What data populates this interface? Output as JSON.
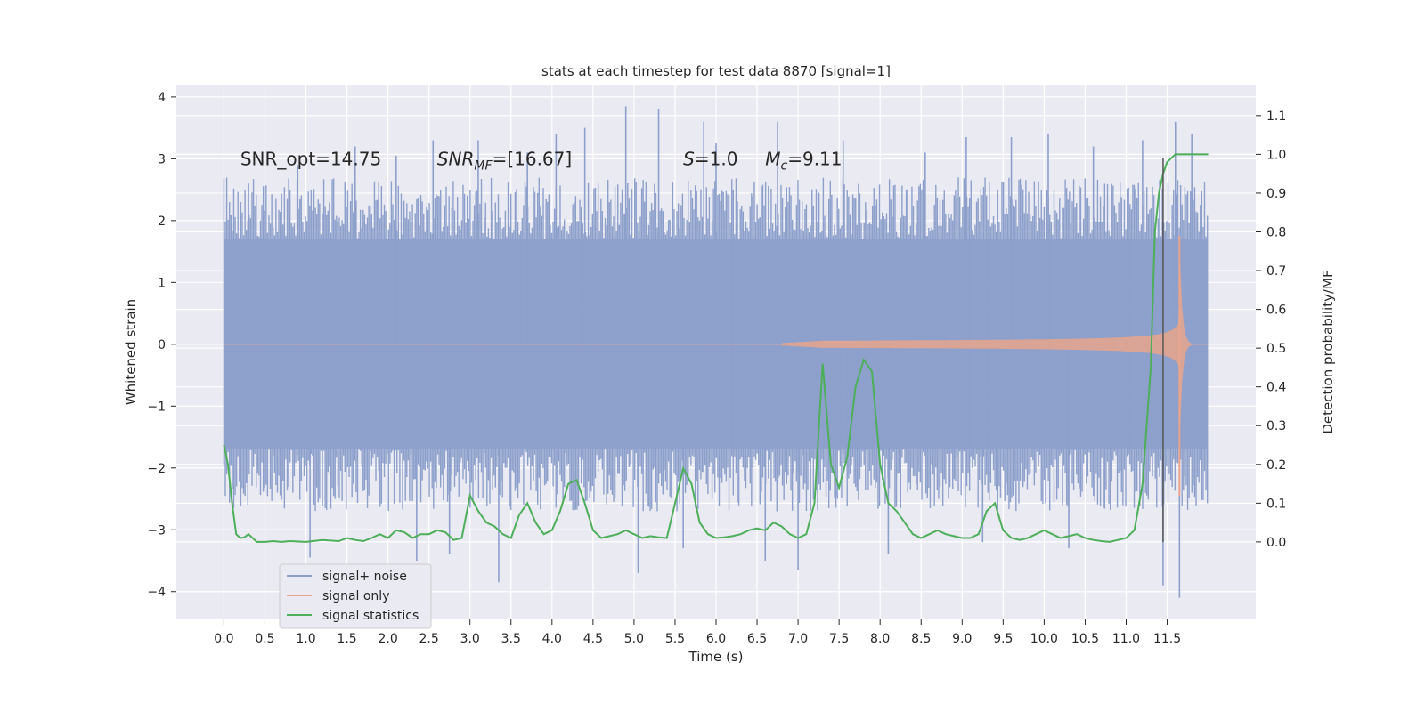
{
  "chart_data": {
    "type": "line",
    "title": "stats at each timestep for test data 8870 [signal=1]",
    "xlabel": "Time (s)",
    "ylabel_left": "Whitened strain",
    "ylabel_right": "Detection probability/MF",
    "xlim": [
      -0.58,
      12.58
    ],
    "ylim_left": [
      -4.45,
      4.2
    ],
    "ylim_right": [
      -0.2,
      1.18
    ],
    "x_ticks": [
      "0.0",
      "0.5",
      "1.0",
      "1.5",
      "2.0",
      "2.5",
      "3.0",
      "3.5",
      "4.0",
      "4.5",
      "5.0",
      "5.5",
      "6.0",
      "6.5",
      "7.0",
      "7.5",
      "8.0",
      "8.5",
      "9.0",
      "9.5",
      "10.0",
      "10.5",
      "11.0",
      "11.5"
    ],
    "y_ticks_left": [
      "−4",
      "−3",
      "−2",
      "−1",
      "0",
      "1",
      "2",
      "3",
      "4"
    ],
    "y_ticks_right": [
      "0.0",
      "0.1",
      "0.2",
      "0.3",
      "0.4",
      "0.5",
      "0.6",
      "0.7",
      "0.8",
      "0.9",
      "1.0",
      "1.1"
    ],
    "annotations": [
      {
        "label": "SNR_opt=14.75",
        "x": 0.2,
        "y": 3.0
      },
      {
        "label": "SNR_MF=[16.67]",
        "x": 2.6,
        "y": 3.0
      },
      {
        "label": "S=1.0",
        "x": 5.6,
        "y": 3.0
      },
      {
        "label": "M_c=9.11",
        "x": 6.6,
        "y": 3.0
      }
    ],
    "vline_x": 11.45,
    "legend": "lower-left",
    "grid": true,
    "series": [
      {
        "name": "signal+ noise",
        "color": "#8da0cb",
        "axis": "left",
        "style": "noise-band",
        "x_range": [
          0.0,
          11.99
        ],
        "envelope_upper": 2.3,
        "envelope_lower": -2.3,
        "spikes": [
          {
            "x": 0.3,
            "y": 2.6
          },
          {
            "x": 0.9,
            "y": 2.9
          },
          {
            "x": 1.05,
            "y": -3.45
          },
          {
            "x": 1.6,
            "y": 3.2
          },
          {
            "x": 2.1,
            "y": 3.05
          },
          {
            "x": 2.35,
            "y": -3.5
          },
          {
            "x": 2.55,
            "y": 3.3
          },
          {
            "x": 2.75,
            "y": -3.4
          },
          {
            "x": 3.1,
            "y": 3.3
          },
          {
            "x": 3.35,
            "y": -3.85
          },
          {
            "x": 3.7,
            "y": 3.1
          },
          {
            "x": 4.05,
            "y": 3.4
          },
          {
            "x": 4.4,
            "y": 3.5
          },
          {
            "x": 4.9,
            "y": 3.85
          },
          {
            "x": 5.05,
            "y": -3.7
          },
          {
            "x": 5.3,
            "y": 3.8
          },
          {
            "x": 5.6,
            "y": -3.3
          },
          {
            "x": 5.85,
            "y": 3.6
          },
          {
            "x": 6.0,
            "y": 3.25
          },
          {
            "x": 6.6,
            "y": -3.5
          },
          {
            "x": 6.75,
            "y": 3.6
          },
          {
            "x": 7.0,
            "y": -3.65
          },
          {
            "x": 7.55,
            "y": 3.3
          },
          {
            "x": 8.1,
            "y": -3.4
          },
          {
            "x": 8.55,
            "y": 3.1
          },
          {
            "x": 9.05,
            "y": 3.35
          },
          {
            "x": 9.25,
            "y": -3.2
          },
          {
            "x": 9.6,
            "y": 3.35
          },
          {
            "x": 10.05,
            "y": 3.4
          },
          {
            "x": 10.3,
            "y": -3.3
          },
          {
            "x": 10.6,
            "y": 3.2
          },
          {
            "x": 11.2,
            "y": 3.3
          },
          {
            "x": 11.45,
            "y": -3.9
          },
          {
            "x": 11.6,
            "y": 3.6
          },
          {
            "x": 11.65,
            "y": -4.1
          },
          {
            "x": 11.8,
            "y": 3.4
          }
        ]
      },
      {
        "name": "signal only",
        "color": "#e8a58c",
        "axis": "left",
        "style": "chirp",
        "x_range": [
          0.0,
          11.99
        ],
        "onset_x": 6.8,
        "peak_x": 11.65,
        "peak_amplitude": 1.8
      },
      {
        "name": "signal statistics",
        "color": "#4daf5a",
        "axis": "right",
        "style": "line",
        "x": [
          0.0,
          0.05,
          0.1,
          0.15,
          0.2,
          0.25,
          0.3,
          0.4,
          0.5,
          0.6,
          0.7,
          0.8,
          1.0,
          1.2,
          1.4,
          1.5,
          1.6,
          1.7,
          1.8,
          1.9,
          2.0,
          2.1,
          2.2,
          2.3,
          2.4,
          2.5,
          2.6,
          2.7,
          2.8,
          2.9,
          3.0,
          3.1,
          3.2,
          3.3,
          3.4,
          3.5,
          3.6,
          3.7,
          3.8,
          3.9,
          4.0,
          4.1,
          4.2,
          4.3,
          4.4,
          4.5,
          4.6,
          4.7,
          4.8,
          4.9,
          5.0,
          5.1,
          5.2,
          5.3,
          5.4,
          5.5,
          5.6,
          5.7,
          5.8,
          5.9,
          6.0,
          6.1,
          6.2,
          6.3,
          6.4,
          6.5,
          6.6,
          6.7,
          6.8,
          6.9,
          7.0,
          7.1,
          7.2,
          7.3,
          7.4,
          7.5,
          7.6,
          7.7,
          7.8,
          7.9,
          8.0,
          8.1,
          8.2,
          8.3,
          8.4,
          8.5,
          8.6,
          8.7,
          8.8,
          8.9,
          9.0,
          9.1,
          9.2,
          9.3,
          9.4,
          9.5,
          9.6,
          9.7,
          9.8,
          9.9,
          10.0,
          10.1,
          10.2,
          10.3,
          10.4,
          10.5,
          10.6,
          10.7,
          10.8,
          10.9,
          11.0,
          11.1,
          11.2,
          11.3,
          11.35,
          11.4,
          11.45,
          11.5,
          11.55,
          11.6,
          11.7,
          11.8,
          11.9,
          12.0
        ],
        "values": [
          0.25,
          0.2,
          0.1,
          0.02,
          0.01,
          0.012,
          0.02,
          0.0,
          0.0,
          0.002,
          0.0,
          0.002,
          0.0,
          0.005,
          0.002,
          0.01,
          0.005,
          0.002,
          0.01,
          0.02,
          0.01,
          0.03,
          0.025,
          0.01,
          0.02,
          0.02,
          0.03,
          0.025,
          0.005,
          0.01,
          0.12,
          0.08,
          0.05,
          0.04,
          0.02,
          0.01,
          0.07,
          0.1,
          0.05,
          0.02,
          0.03,
          0.08,
          0.15,
          0.16,
          0.1,
          0.03,
          0.01,
          0.015,
          0.02,
          0.03,
          0.02,
          0.01,
          0.015,
          0.012,
          0.01,
          0.1,
          0.19,
          0.15,
          0.05,
          0.02,
          0.01,
          0.012,
          0.015,
          0.02,
          0.03,
          0.035,
          0.03,
          0.05,
          0.04,
          0.02,
          0.01,
          0.02,
          0.1,
          0.46,
          0.2,
          0.14,
          0.22,
          0.4,
          0.47,
          0.44,
          0.2,
          0.1,
          0.08,
          0.05,
          0.02,
          0.01,
          0.02,
          0.03,
          0.02,
          0.015,
          0.01,
          0.01,
          0.02,
          0.08,
          0.1,
          0.03,
          0.01,
          0.005,
          0.01,
          0.02,
          0.03,
          0.02,
          0.01,
          0.015,
          0.02,
          0.01,
          0.005,
          0.002,
          0.0,
          0.005,
          0.01,
          0.03,
          0.15,
          0.45,
          0.8,
          0.9,
          0.95,
          0.98,
          0.99,
          1.0,
          1.0,
          1.0,
          1.0,
          1.0
        ]
      }
    ]
  }
}
